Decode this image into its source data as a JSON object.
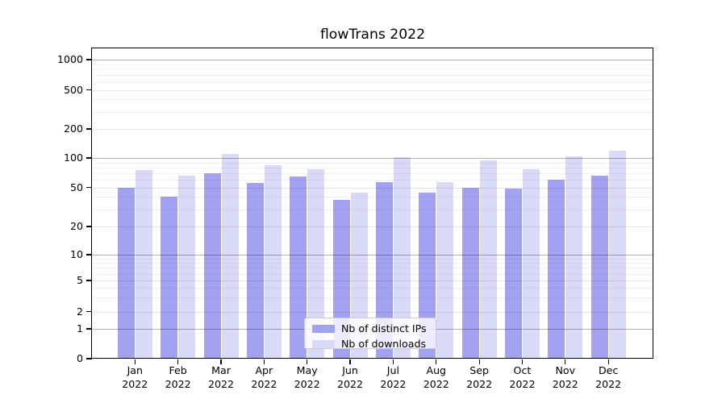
{
  "chart_data": {
    "type": "bar",
    "title": "flowTrans 2022",
    "categories": [
      "Jan 2022",
      "Feb 2022",
      "Mar 2022",
      "Apr 2022",
      "May 2022",
      "Jun 2022",
      "Jul 2022",
      "Aug 2022",
      "Sep 2022",
      "Oct 2022",
      "Nov 2022",
      "Dec 2022"
    ],
    "series": [
      {
        "name": "Nb of distinct IPs",
        "color": "#a2a2f0",
        "values": [
          50,
          40,
          70,
          56,
          65,
          37,
          57,
          44,
          50,
          49,
          60,
          66
        ]
      },
      {
        "name": "Nb of downloads",
        "color": "#d9d9f8",
        "values": [
          75,
          66,
          110,
          84,
          77,
          44,
          102,
          57,
          95,
          77,
          103,
          120
        ]
      }
    ],
    "yscale": "symlog",
    "yticks": [
      0,
      1,
      2,
      5,
      10,
      20,
      50,
      100,
      200,
      500,
      1000
    ],
    "ylim": [
      0,
      1300
    ],
    "grid": "both",
    "legend_position": "lower center"
  }
}
